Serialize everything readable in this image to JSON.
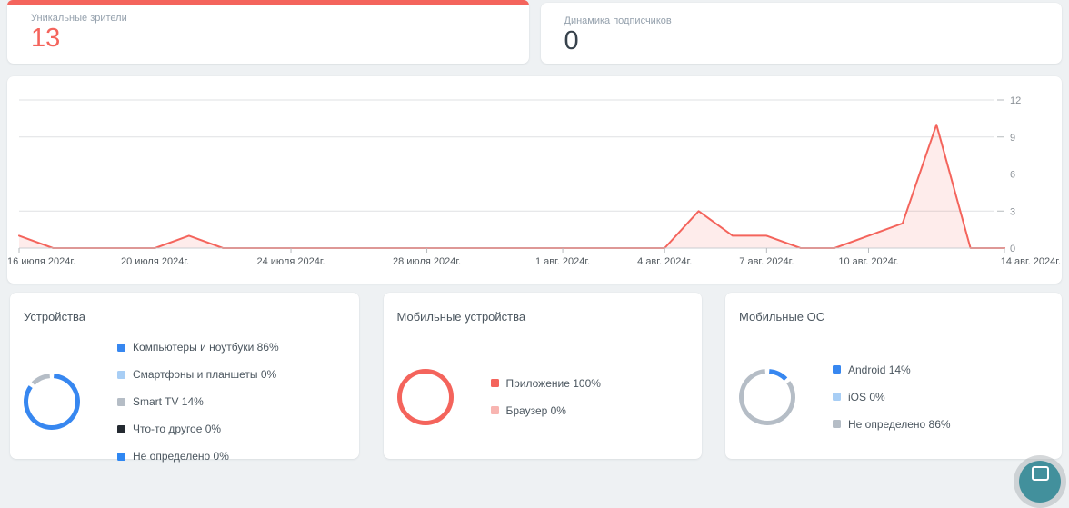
{
  "colors": {
    "page_bg": "#eef1f3",
    "card_bg": "#ffffff",
    "accent_red": "#f4645c",
    "area_fill": "rgba(244,100,92,0.12)",
    "muted_label": "#95a1ad",
    "dark_value": "#37424c",
    "title_text": "#4b565f",
    "legend_text": "#4b565f",
    "x_axis_text": "#52595f",
    "y_tick_text": "#8a9096",
    "grid_line": "#dfe1e3",
    "axis_line": "#c9cdd1",
    "tick_mark": "#b6babd",
    "fab_teal": "#42909c"
  },
  "stat_tabs": [
    {
      "label": "Уникальные зрители",
      "value": "13",
      "active": true
    },
    {
      "label": "Динамика подписчиков",
      "value": "0",
      "active": false
    }
  ],
  "chart_data": {
    "type": "area",
    "title": "",
    "xlabel": "",
    "ylabel": "",
    "grid": true,
    "legend": "none",
    "ylim": [
      0,
      12
    ],
    "y_ticks": [
      0,
      3,
      6,
      9,
      12
    ],
    "x": [
      "16 июля",
      "17 июля",
      "18 июля",
      "19 июля",
      "20 июля",
      "21 июля",
      "22 июля",
      "23 июля",
      "24 июля",
      "25 июля",
      "26 июля",
      "27 июля",
      "28 июля",
      "29 июля",
      "30 июля",
      "31 июля",
      "1 авг.",
      "2 авг.",
      "3 авг.",
      "4 авг.",
      "5 авг.",
      "6 авг.",
      "7 авг.",
      "8 авг.",
      "9 авг.",
      "10 авг.",
      "11 авг.",
      "12 авг.",
      "13 авг.",
      "14 авг."
    ],
    "values": [
      1,
      0,
      0,
      0,
      0,
      1,
      0,
      0,
      0,
      0,
      0,
      0,
      0,
      0,
      0,
      0,
      0,
      0,
      0,
      0,
      3,
      1,
      1,
      0,
      0,
      1,
      2,
      10,
      0,
      0
    ],
    "x_tick_labels": [
      {
        "index": 0,
        "label": "16 июля 2024г."
      },
      {
        "index": 4,
        "label": "20 июля 2024г."
      },
      {
        "index": 8,
        "label": "24 июля 2024г."
      },
      {
        "index": 12,
        "label": "28 июля 2024г."
      },
      {
        "index": 16,
        "label": "1 авг. 2024г."
      },
      {
        "index": 19,
        "label": "4 авг. 2024г."
      },
      {
        "index": 22,
        "label": "7 авг. 2024г."
      },
      {
        "index": 25,
        "label": "10 авг. 2024г."
      },
      {
        "index": 29,
        "label": "14 авг. 2024г."
      }
    ],
    "line_color": "#f4645c"
  },
  "breakdown_cards": [
    {
      "title": "Устройства",
      "items": [
        {
          "label": "Компьютеры и ноутбуки",
          "pct": 86,
          "color": "#3787f0"
        },
        {
          "label": "Смартфоны и планшеты",
          "pct": 0,
          "color": "#a8cef5"
        },
        {
          "label": "Smart TV",
          "pct": 14,
          "color": "#b5bdc6"
        },
        {
          "label": "Что-то другое",
          "pct": 0,
          "color": "#242a31"
        },
        {
          "label": "Не определено",
          "pct": 0,
          "color": "#2f87f2"
        }
      ]
    },
    {
      "title": "Мобильные устройства",
      "items": [
        {
          "label": "Приложение",
          "pct": 100,
          "color": "#f4645c"
        },
        {
          "label": "Браузер",
          "pct": 0,
          "color": "#f8b5b1"
        }
      ]
    },
    {
      "title": "Мобильные ОС",
      "items": [
        {
          "label": "Android",
          "pct": 14,
          "color": "#3787f0"
        },
        {
          "label": "iOS",
          "pct": 0,
          "color": "#a8cef5"
        },
        {
          "label": "Не определено",
          "pct": 86,
          "color": "#b5bdc6"
        }
      ]
    }
  ]
}
